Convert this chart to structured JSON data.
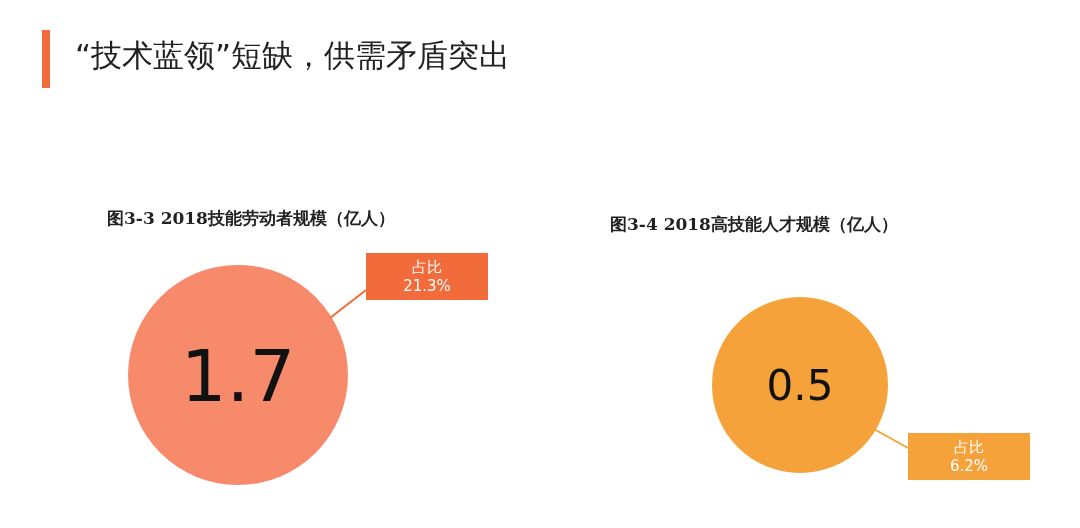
{
  "chart_data": [
    {
      "type": "other",
      "title": "“技术蓝领”短缺，供需矛盾突出",
      "color": "#f26b3a"
    },
    {
      "type": "other",
      "title": "图3-3 2018技能劳动者规模（亿人）",
      "values": [
        1.7
      ],
      "colors": [
        "#f88a6c"
      ],
      "data_labels": true,
      "annotations": [
        "占比\n21.3%"
      ],
      "color": "#f26b3a"
    },
    {
      "type": "other",
      "title": "图3-4 2018高技能人才规模（亿人）",
      "values": [
        0.5
      ],
      "colors": [
        "#f5a23a"
      ],
      "data_labels": true,
      "annotations": [
        "占比\n6.2%"
      ],
      "color": "#f5a23a"
    }
  ]
}
